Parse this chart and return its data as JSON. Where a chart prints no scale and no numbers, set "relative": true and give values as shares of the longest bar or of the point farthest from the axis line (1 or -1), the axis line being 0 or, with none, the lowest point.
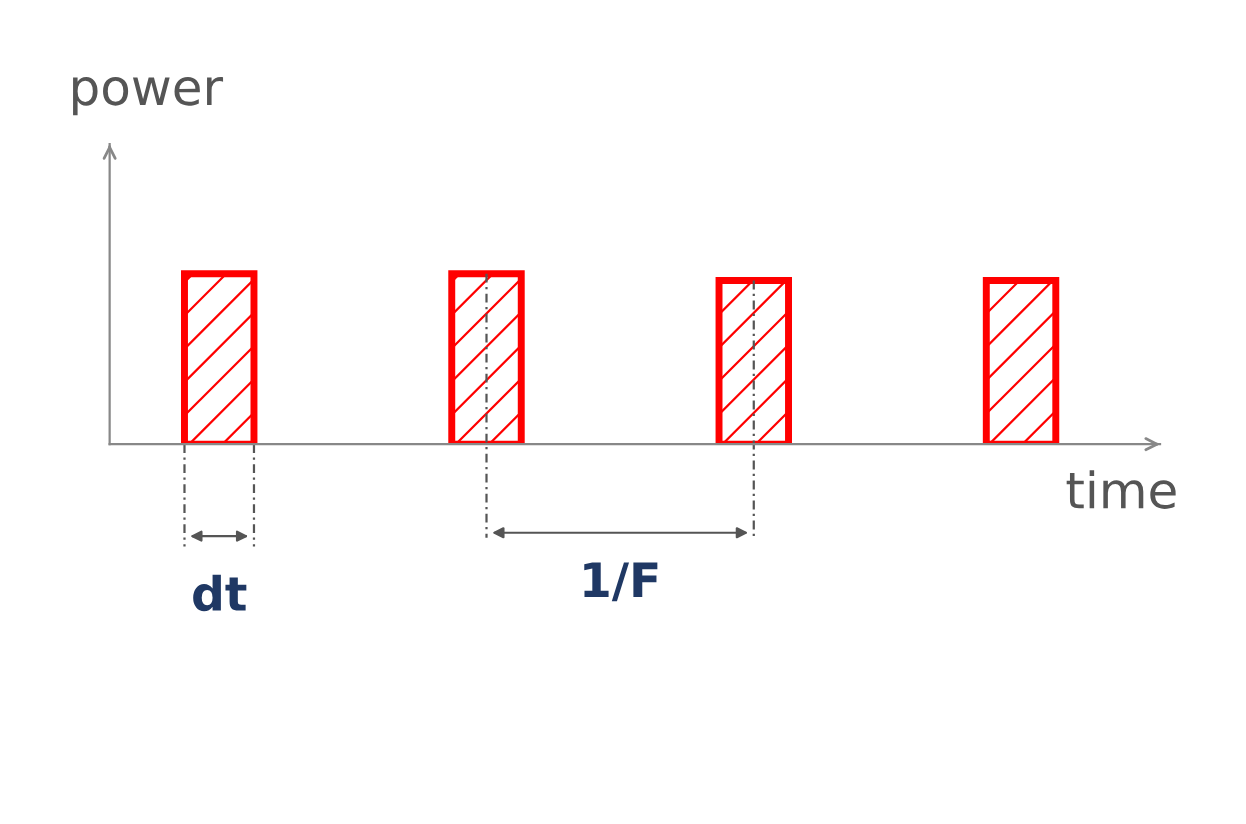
{
  "chart_data": {
    "type": "bar",
    "relative": true,
    "categories": [
      null,
      null,
      null,
      null
    ],
    "values": [
      1,
      1,
      0.96,
      0.96
    ],
    "color": "#ff0000",
    "xlabel": "time",
    "ylabel": "power",
    "annotations": [
      "dt",
      "1/F"
    ],
    "grid": false,
    "legend": false
  }
}
